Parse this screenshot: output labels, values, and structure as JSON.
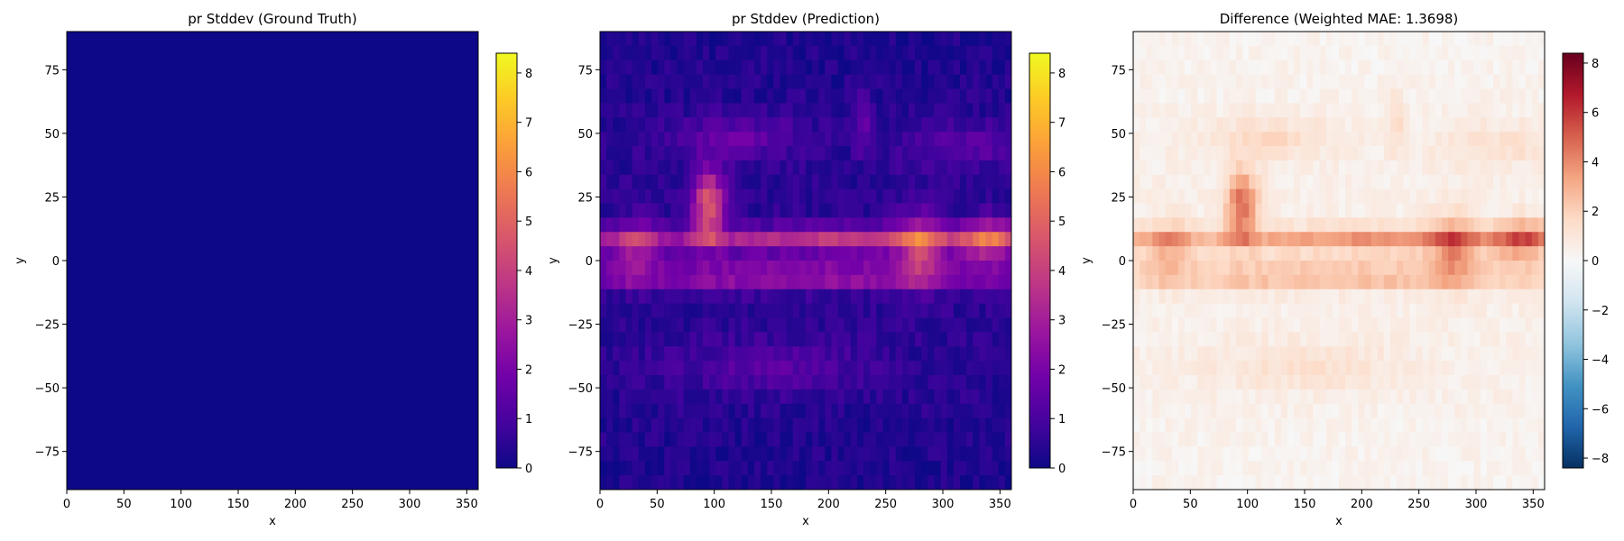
{
  "chart_data": [
    {
      "type": "heatmap",
      "title": "pr Stddev (Ground Truth)",
      "xlabel": "x",
      "ylabel": "y",
      "xlim": [
        0,
        360
      ],
      "ylim": [
        -90,
        90
      ],
      "x_ticks": [
        "0",
        "50",
        "100",
        "150",
        "200",
        "250",
        "300",
        "350"
      ],
      "y_ticks": [
        "−75",
        "−50",
        "−25",
        "0",
        "25",
        "50",
        "75"
      ],
      "colormap": "plasma",
      "colorbar": {
        "range": [
          0,
          8.4
        ],
        "ticks": [
          "0",
          "1",
          "2",
          "3",
          "4",
          "5",
          "6",
          "7",
          "8"
        ]
      },
      "field_description": "uniform ~0 everywhere"
    },
    {
      "type": "heatmap",
      "title": "pr Stddev (Prediction)",
      "xlabel": "x",
      "ylabel": "y",
      "xlim": [
        0,
        360
      ],
      "ylim": [
        -90,
        90
      ],
      "x_ticks": [
        "0",
        "50",
        "100",
        "150",
        "200",
        "250",
        "300",
        "350"
      ],
      "y_ticks": [
        "−75",
        "−50",
        "−25",
        "0",
        "25",
        "50",
        "75"
      ],
      "colormap": "plasma",
      "colorbar": {
        "range": [
          0,
          8.4
        ],
        "ticks": [
          "0",
          "1",
          "2",
          "3",
          "4",
          "5",
          "6",
          "7",
          "8"
        ]
      },
      "peak_value": 8.3
    },
    {
      "type": "heatmap",
      "title": "Difference (Weighted MAE: 1.3698)",
      "xlabel": "x",
      "ylabel": "y",
      "xlim": [
        0,
        360
      ],
      "ylim": [
        -90,
        90
      ],
      "x_ticks": [
        "0",
        "50",
        "100",
        "150",
        "200",
        "250",
        "300",
        "350"
      ],
      "y_ticks": [
        "−75",
        "−50",
        "−25",
        "0",
        "25",
        "50",
        "75"
      ],
      "colormap": "RdBu_r",
      "colorbar": {
        "range": [
          -8.4,
          8.4
        ],
        "ticks": [
          "8",
          "6",
          "4",
          "2",
          "0",
          "−2",
          "−4",
          "−6",
          "−8"
        ]
      },
      "weighted_mae": 1.3698
    }
  ],
  "colors": {
    "gt_fill": "#0d0887",
    "plasma": [
      "#0d0887",
      "#46039f",
      "#7201a8",
      "#9c179e",
      "#bd3786",
      "#d8576b",
      "#ed7953",
      "#fb9f3a",
      "#fdca26",
      "#f0f921"
    ],
    "rdbu_r": [
      "#053061",
      "#2166ac",
      "#4393c3",
      "#92c5de",
      "#d1e5f0",
      "#f7f7f7",
      "#fddbc7",
      "#f4a582",
      "#d6604d",
      "#b2182b",
      "#67001f"
    ]
  }
}
